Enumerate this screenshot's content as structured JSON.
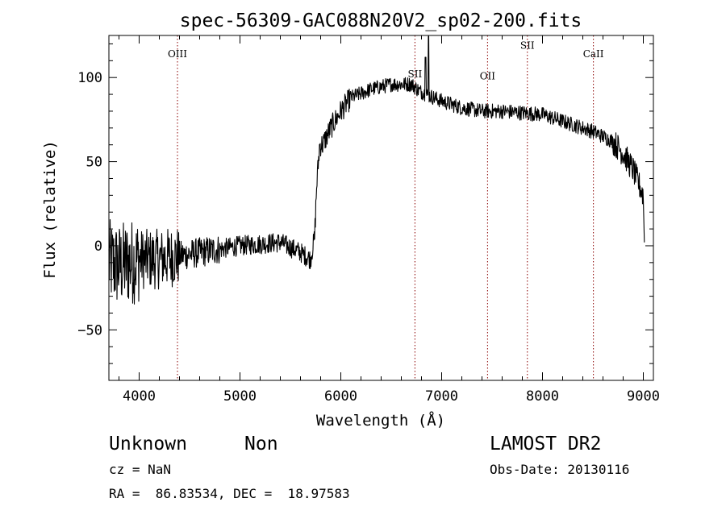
{
  "chart_data": {
    "type": "line",
    "title": "spec-56309-GAC088N20V2_sp02-200.fits",
    "xlabel": "Wavelength (Å)",
    "ylabel": "Flux (relative)",
    "xlim": [
      3700,
      9100
    ],
    "ylim": [
      -80,
      125
    ],
    "x_ticks": [
      4000,
      5000,
      6000,
      7000,
      8000,
      9000
    ],
    "x_tick_labels": [
      "4000",
      "5000",
      "6000",
      "7000",
      "8000",
      "9000"
    ],
    "y_ticks": [
      -50,
      0,
      50,
      100
    ],
    "y_tick_labels": [
      "−50",
      "0",
      "50",
      "100"
    ],
    "line_color": "#000000",
    "marker_color": "#8b0000",
    "spectrum_anchors": [
      [
        3700,
        -10
      ],
      [
        3800,
        -12
      ],
      [
        3900,
        -10
      ],
      [
        4000,
        -8
      ],
      [
        4200,
        -8
      ],
      [
        4400,
        -6
      ],
      [
        4600,
        -4
      ],
      [
        4800,
        -2
      ],
      [
        5000,
        0
      ],
      [
        5200,
        1
      ],
      [
        5400,
        2
      ],
      [
        5600,
        -4
      ],
      [
        5700,
        -8
      ],
      [
        5740,
        5
      ],
      [
        5760,
        35
      ],
      [
        5790,
        60
      ],
      [
        5820,
        60
      ],
      [
        5900,
        70
      ],
      [
        6000,
        80
      ],
      [
        6100,
        88
      ],
      [
        6300,
        93
      ],
      [
        6500,
        96
      ],
      [
        6700,
        96
      ],
      [
        6780,
        92
      ],
      [
        6850,
        90
      ],
      [
        7000,
        86
      ],
      [
        7200,
        82
      ],
      [
        7400,
        80
      ],
      [
        7600,
        80
      ],
      [
        7800,
        79
      ],
      [
        8000,
        78
      ],
      [
        8200,
        74
      ],
      [
        8400,
        70
      ],
      [
        8500,
        68
      ],
      [
        8700,
        62
      ],
      [
        8800,
        55
      ],
      [
        8900,
        45
      ],
      [
        9000,
        30
      ]
    ],
    "spikes": [
      [
        6870,
        130
      ],
      [
        6840,
        112
      ]
    ],
    "lines": [
      {
        "name": "OIII",
        "wavelength": 4380,
        "label_flux": 112
      },
      {
        "name": "SII",
        "wavelength": 6735,
        "label_flux": 100
      },
      {
        "name": "OII",
        "wavelength": 7455,
        "label_flux": 99
      },
      {
        "name": "SII",
        "wavelength": 7850,
        "label_flux": 117
      },
      {
        "name": "CaII",
        "wavelength": 8505,
        "label_flux": 112
      }
    ]
  },
  "info": {
    "class_name": "Unknown",
    "subclass": "Non",
    "survey": "LAMOST DR2",
    "redshift_line": "cz = NaN",
    "obs_date_line": "Obs-Date: 20130116",
    "coords_line": "RA =  86.83534, DEC =  18.97583"
  }
}
